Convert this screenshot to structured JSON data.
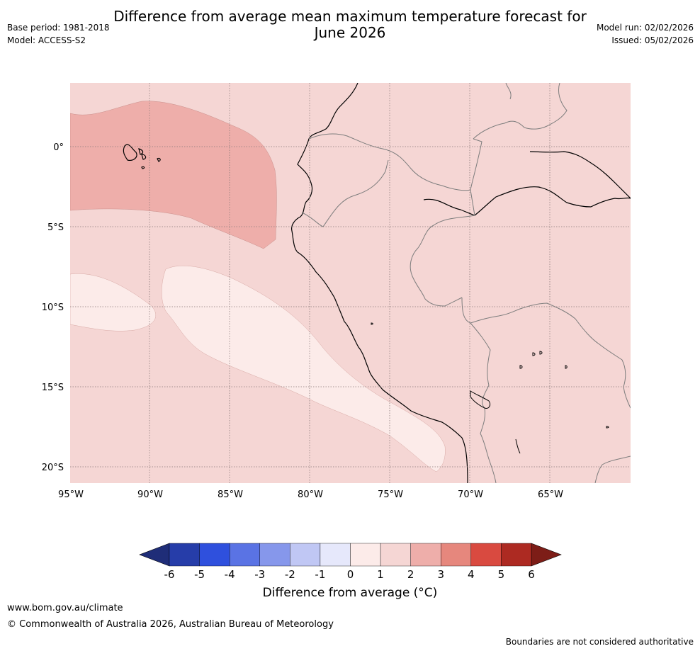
{
  "title_line1": "Difference from average mean maximum temperature forecast for",
  "title_line2": "June 2026",
  "base_period": "Base period: 1981-2018",
  "model": "Model: ACCESS-S2",
  "model_run": "Model run: 02/02/2026",
  "issued": "Issued: 05/02/2026",
  "map": {
    "lon_labels": [
      "95°W",
      "90°W",
      "85°W",
      "80°W",
      "75°W",
      "70°W",
      "65°W"
    ],
    "lat_labels": [
      "0°",
      "5°S",
      "10°S",
      "15°S",
      "20°S"
    ],
    "legend": [
      {
        "range": "> 2 to 3",
        "color": "#eeaeaa"
      },
      {
        "range": "> 1 to 2",
        "color": "#f5d6d4"
      },
      {
        "range": "> 0 to 1",
        "color": "#fcebe9"
      }
    ]
  },
  "colorbar": {
    "ticks": [
      "-6",
      "-5",
      "-4",
      "-3",
      "-2",
      "-1",
      "0",
      "1",
      "2",
      "3",
      "4",
      "5",
      "6"
    ],
    "colors": [
      "#263da9",
      "#2f50dd",
      "#5a73e4",
      "#8697eb",
      "#c0c7f4",
      "#e6e8fb",
      "#fcebe9",
      "#f5d6d4",
      "#eeaeaa",
      "#e6877d",
      "#d94a40",
      "#ad2a22"
    ],
    "under_color": "#1f2d78",
    "over_color": "#7d1d17",
    "label": "Difference from average (°C)"
  },
  "footer": {
    "url": "www.bom.gov.au/climate",
    "copyright": "© Commonwealth of Australia 2026, Australian Bureau of Meteorology",
    "disclaimer": "Boundaries are not considered authoritative"
  }
}
